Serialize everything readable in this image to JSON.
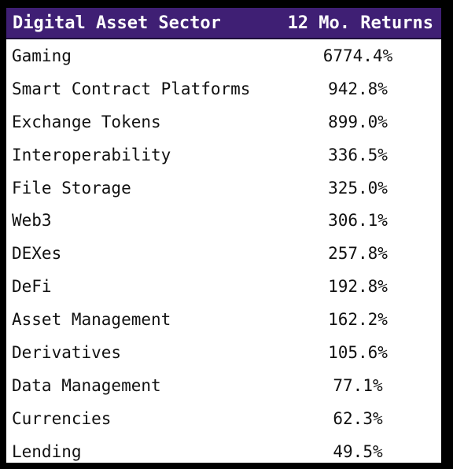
{
  "table": {
    "header": {
      "sector": "Digital Asset Sector",
      "returns": "12 Mo. Returns"
    },
    "rows": [
      {
        "sector": "Gaming",
        "return": "6774.4%"
      },
      {
        "sector": "Smart Contract Platforms",
        "return": "942.8%"
      },
      {
        "sector": "Exchange Tokens",
        "return": "899.0%"
      },
      {
        "sector": "Interoperability",
        "return": "336.5%"
      },
      {
        "sector": "File Storage",
        "return": "325.0%"
      },
      {
        "sector": "Web3",
        "return": "306.1%"
      },
      {
        "sector": "DEXes",
        "return": "257.8%"
      },
      {
        "sector": "DeFi",
        "return": "192.8%"
      },
      {
        "sector": "Asset Management",
        "return": "162.2%"
      },
      {
        "sector": "Derivatives",
        "return": "105.6%"
      },
      {
        "sector": "Data Management",
        "return": "77.1%"
      },
      {
        "sector": "Currencies",
        "return": "62.3%"
      },
      {
        "sector": "Lending",
        "return": "49.5%"
      }
    ]
  },
  "colors": {
    "header_bg": "#3f1f74",
    "header_text": "#ffffff",
    "body_bg": "#ffffff",
    "frame": "#000000"
  }
}
